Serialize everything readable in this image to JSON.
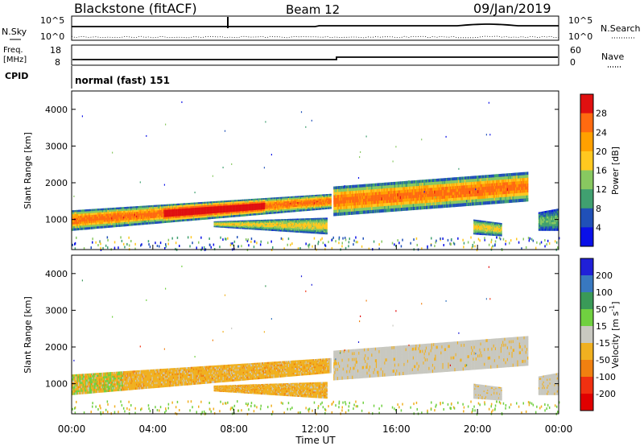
{
  "header": {
    "station": "Blackstone (fitACF)",
    "beam": "Beam 12",
    "date": "09/Jan/2019"
  },
  "noise_panel": {
    "left_label": "N.Sky",
    "right_label": "N.Search",
    "left_ticks": [
      "10^5",
      "10^0"
    ],
    "right_ticks": [
      "10^5",
      "10^0"
    ]
  },
  "freq_panel": {
    "left_label_line1": "Freq.",
    "left_label_line2": "[MHz]",
    "right_label": "Nave",
    "left_ticks": [
      "18",
      "8"
    ],
    "right_ticks": [
      "60",
      "0"
    ]
  },
  "cpid_panel": {
    "label": "CPID",
    "mode": "normal (fast) 151"
  },
  "chart_data": [
    {
      "type": "heatmap",
      "title": "",
      "ylabel": "Slant Range [km]",
      "xlabel": "",
      "ylim": [
        180,
        4500
      ],
      "yticks": [
        1000,
        2000,
        3000,
        4000
      ],
      "xlim": [
        0,
        24
      ],
      "colorbar": {
        "label": "Power [dB]",
        "ticks": [
          "28",
          "24",
          "20",
          "16",
          "12",
          "8",
          "4"
        ],
        "colors": [
          "#e01010",
          "#ff6a10",
          "#ffa000",
          "#ffc820",
          "#88c860",
          "#40a070",
          "#2050b8",
          "#0a10e8"
        ]
      },
      "echo_regions": [
        {
          "name": "band1",
          "t_start": 0.0,
          "t_end": 12.8,
          "r_top_start": 1250,
          "r_top_end": 1700,
          "r_bot_start": 700,
          "r_bot_end": 1300,
          "peak": 26
        },
        {
          "name": "band2",
          "t_start": 7.0,
          "t_end": 12.6,
          "r_top_start": 950,
          "r_top_end": 1050,
          "r_bot_start": 800,
          "r_bot_end": 600,
          "peak": 18
        },
        {
          "name": "band3",
          "t_start": 12.9,
          "t_end": 22.5,
          "r_top_start": 1900,
          "r_top_end": 2300,
          "r_bot_start": 1100,
          "r_bot_end": 1500,
          "peak": 22
        },
        {
          "name": "patch4",
          "t_start": 19.8,
          "t_end": 21.2,
          "r_top_start": 1000,
          "r_top_end": 900,
          "r_bot_start": 600,
          "r_bot_end": 550,
          "peak": 18
        },
        {
          "name": "patch5",
          "t_start": 23.0,
          "t_end": 24.0,
          "r_top_start": 1200,
          "r_top_end": 1300,
          "r_bot_start": 700,
          "r_bot_end": 700,
          "peak": 12
        }
      ]
    },
    {
      "type": "heatmap",
      "title": "",
      "ylabel": "Slant Range [km]",
      "xlabel": "Time UT",
      "ylim": [
        180,
        4500
      ],
      "yticks": [
        1000,
        2000,
        3000,
        4000
      ],
      "xlim": [
        0,
        24
      ],
      "xticks": [
        "00:00",
        "04:00",
        "08:00",
        "12:00",
        "16:00",
        "20:00",
        "00:00"
      ],
      "colorbar": {
        "label": "Velocity [m s-1]",
        "ticks": [
          "200",
          "100",
          "50",
          "15",
          "-15",
          "-50",
          "-100",
          "-200"
        ],
        "colors": [
          "#2020d8",
          "#3878c0",
          "#3a9a58",
          "#70d040",
          "#c8c8c0",
          "#f0b020",
          "#f08010",
          "#f03010",
          "#e00000"
        ]
      }
    }
  ]
}
